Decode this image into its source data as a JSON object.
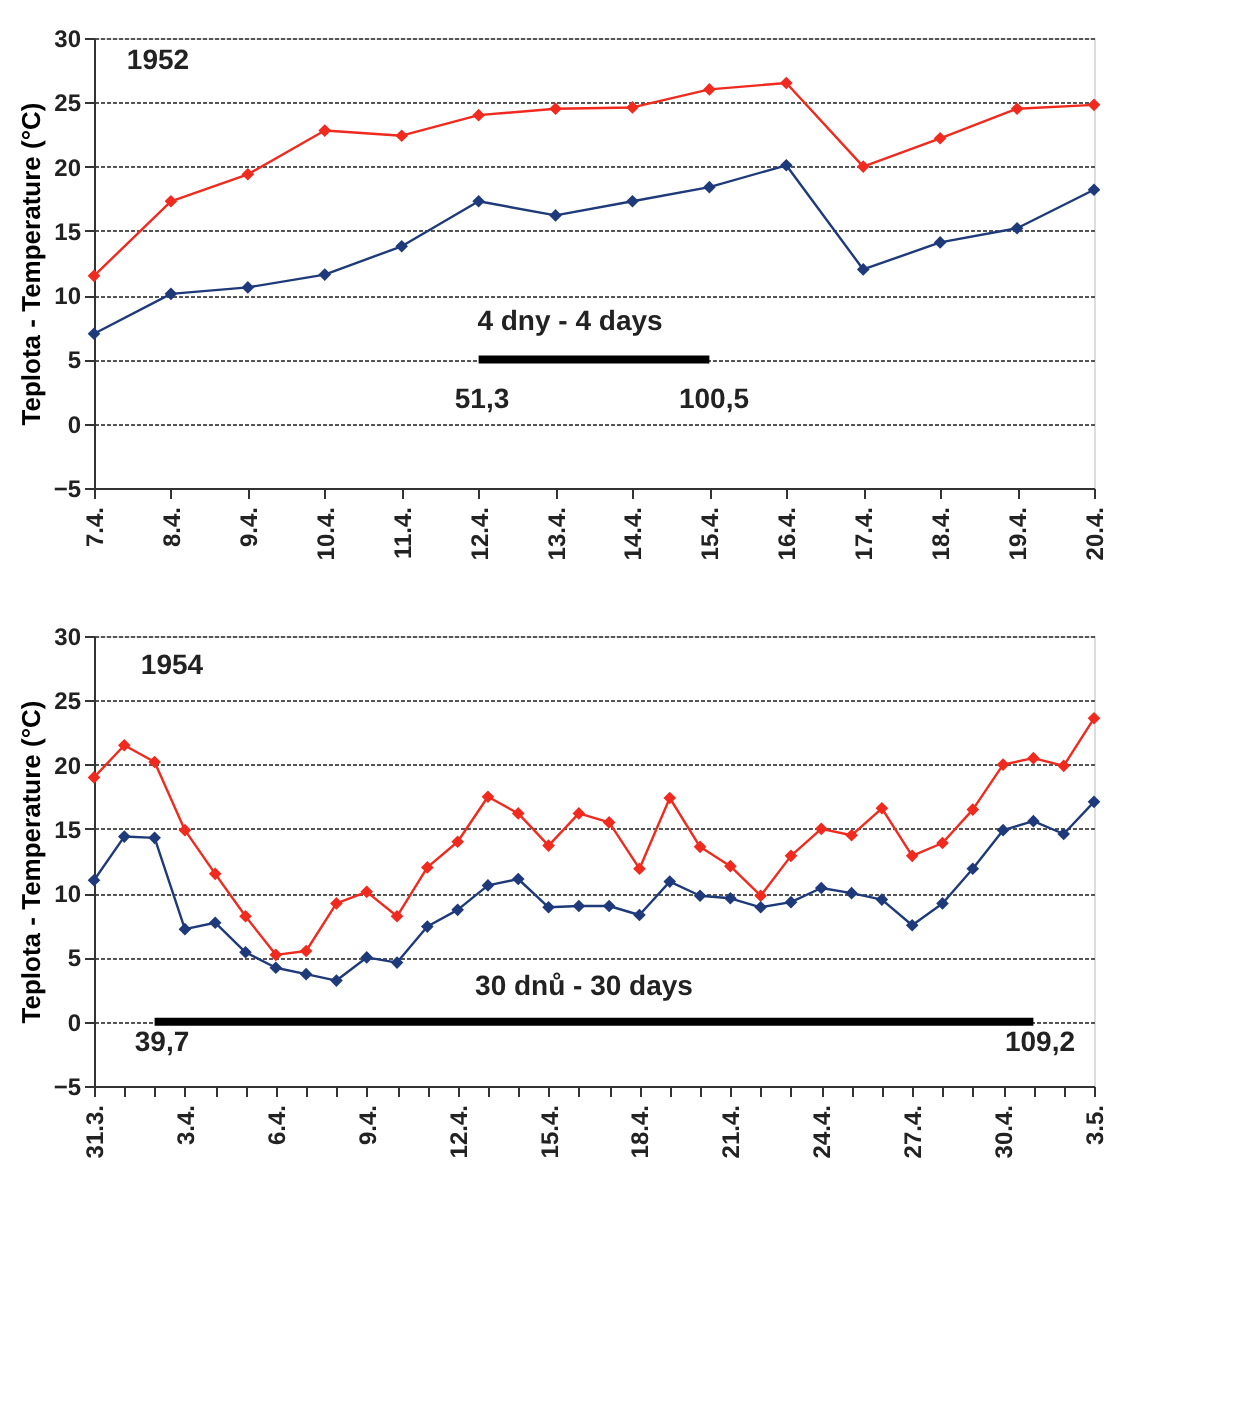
{
  "chart_data": [
    {
      "type": "line",
      "ylabel": "Teplota - Temperature (°C)",
      "categories": [
        "7.4.",
        "8.4.",
        "9.4.",
        "10.4.",
        "11.4.",
        "12.4.",
        "13.4.",
        "14.4.",
        "15.4.",
        "16.4.",
        "17.4.",
        "18.4.",
        "19.4.",
        "20.4."
      ],
      "series": [
        {
          "color": "#f02a1e",
          "values": [
            11.5,
            17.3,
            19.4,
            22.8,
            22.4,
            24,
            24.5,
            24.6,
            26,
            26.5,
            20,
            22.2,
            24.5,
            24.8
          ]
        },
        {
          "color": "#1f3a7a",
          "values": [
            7,
            10.1,
            10.6,
            11.6,
            13.8,
            17.3,
            16.2,
            17.3,
            18.4,
            20.1,
            12,
            14.1,
            15.2,
            18.2
          ]
        },
        {
          "color": "#000000",
          "marker": "none",
          "values": [
            null,
            null,
            null,
            null,
            null,
            5,
            5,
            5,
            5,
            null,
            null,
            null,
            null,
            null
          ]
        }
      ],
      "annotations": [
        "1952",
        "4 dny - 4 days",
        "51,3",
        "100,5"
      ],
      "ylim": [
        -5,
        30
      ],
      "yticks": [
        -5,
        0,
        5,
        10,
        15,
        20,
        25,
        30
      ],
      "grid": "y",
      "legend": false,
      "marker": "diamond",
      "line_style": "solid"
    },
    {
      "type": "line",
      "ylabel": "Teplota - Temperature (°C)",
      "categories": [
        "31.3.",
        null,
        null,
        "3.4.",
        null,
        null,
        "6.4.",
        null,
        null,
        "9.4.",
        null,
        null,
        "12.4.",
        null,
        null,
        "15.4.",
        null,
        null,
        "18.4.",
        null,
        null,
        "21.4.",
        null,
        null,
        "24.4.",
        null,
        null,
        "27.4.",
        null,
        null,
        "30.4.",
        null,
        null,
        "3.5."
      ],
      "series": [
        {
          "color": "#f02a1e",
          "values": [
            19,
            21.5,
            20.2,
            14.9,
            11.5,
            8.2,
            5.2,
            5.5,
            9.2,
            10.1,
            8.2,
            12,
            14,
            17.5,
            16.2,
            13.7,
            16.2,
            15.5,
            11.9,
            17.4,
            13.6,
            12.1,
            9.8,
            12.9,
            15,
            14.5,
            16.6,
            12.9,
            13.9,
            16.5,
            20,
            20.5,
            19.9,
            23.6
          ]
        },
        {
          "color": "#1f3a7a",
          "values": [
            11,
            14.4,
            14.3,
            7.2,
            7.7,
            5.4,
            4.2,
            3.7,
            3.2,
            5,
            4.6,
            7.4,
            8.7,
            10.6,
            11.1,
            8.9,
            9,
            9,
            8.3,
            10.9,
            9.8,
            9.6,
            8.9,
            9.3,
            10.4,
            10,
            9.5,
            7.5,
            9.2,
            11.9,
            14.9,
            15.6,
            14.6,
            17.1
          ]
        },
        {
          "color": "#000000",
          "marker": "none",
          "values": [
            null,
            null,
            0,
            0,
            0,
            0,
            0,
            0,
            0,
            0,
            0,
            0,
            0,
            0,
            0,
            0,
            0,
            0,
            0,
            0,
            0,
            0,
            0,
            0,
            0,
            0,
            0,
            0,
            0,
            0,
            0,
            0,
            null,
            null
          ]
        }
      ],
      "annotations": [
        "1954",
        "30 dnů - 30 days",
        "39,7",
        "109,2"
      ],
      "ylim": [
        -5,
        30
      ],
      "yticks": [
        -5,
        0,
        5,
        10,
        15,
        20,
        25,
        30
      ],
      "grid": "y",
      "legend": false,
      "marker": "diamond",
      "line_style": "solid"
    }
  ]
}
